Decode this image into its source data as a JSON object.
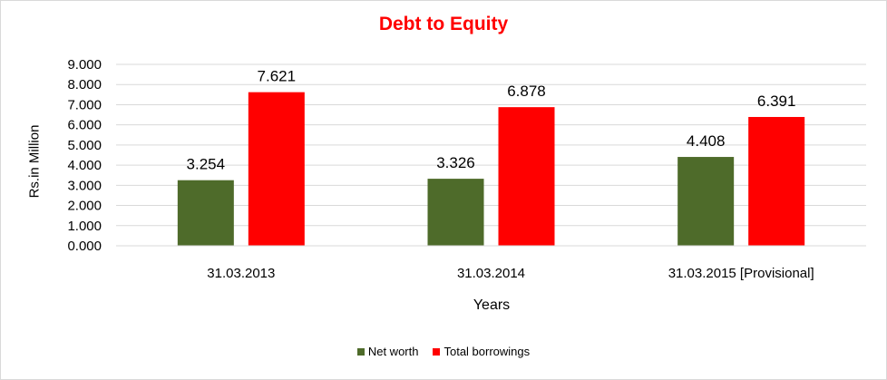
{
  "chart_data": {
    "type": "bar",
    "title": "Debt to Equity",
    "xlabel": "Years",
    "ylabel": "Rs.in Million",
    "categories": [
      "31.03.2013",
      "31.03.2014",
      "31.03.2015 [Provisional]"
    ],
    "series": [
      {
        "name": "Net worth",
        "values": [
          3.254,
          3.326,
          4.408
        ],
        "labels": [
          "3.254",
          "3.326",
          "4.408"
        ],
        "color": "#4e6b2a"
      },
      {
        "name": "Total borrowings",
        "values": [
          7.621,
          6.878,
          6.391
        ],
        "labels": [
          "7.621",
          "6.878",
          "6.391"
        ],
        "color": "#ff0000"
      }
    ],
    "ylim": [
      0,
      9
    ],
    "yticks": [
      0,
      1,
      2,
      3,
      4,
      5,
      6,
      7,
      8,
      9
    ],
    "ytick_labels": [
      "0.000",
      "1.000",
      "2.000",
      "3.000",
      "4.000",
      "5.000",
      "6.000",
      "7.000",
      "8.000",
      "9.000"
    ],
    "grid": true,
    "legend_position": "bottom",
    "title_color": "#ff0000"
  }
}
